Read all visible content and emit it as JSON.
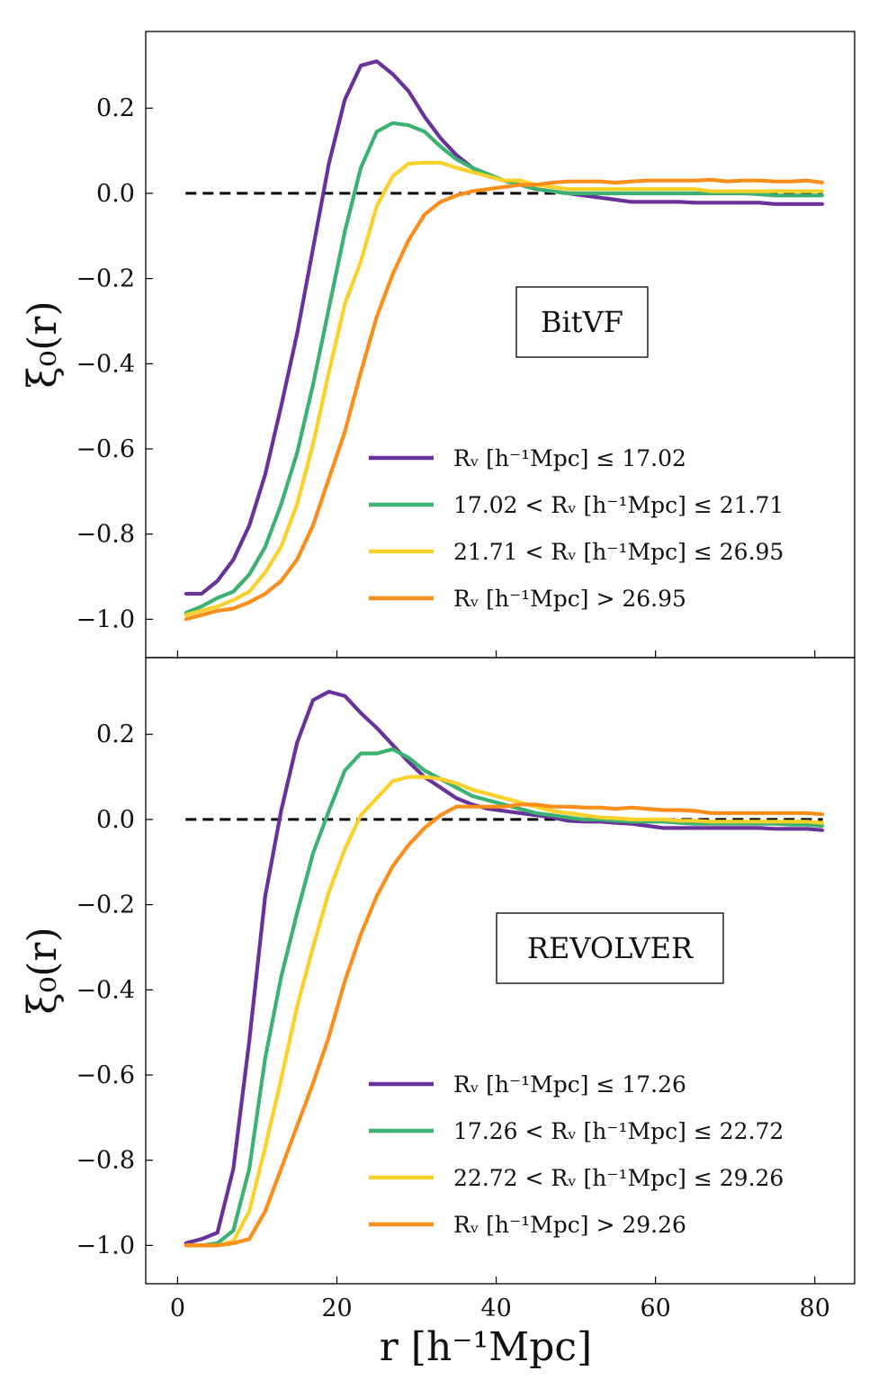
{
  "chart_data": {
    "type": "line",
    "xlabel": "r [h⁻¹Mpc]",
    "ylabel": "ξ₀(r)",
    "xlim": [
      -4,
      85
    ],
    "x_ticks": [
      0,
      20,
      40,
      60,
      80
    ],
    "x_tick_labels": [
      "0",
      "20",
      "40",
      "60",
      "80"
    ],
    "x": [
      1,
      3,
      5,
      7,
      9,
      11,
      13,
      15,
      17,
      19,
      21,
      23,
      25,
      27,
      29,
      31,
      33,
      35,
      37,
      39,
      41,
      43,
      45,
      47,
      49,
      51,
      53,
      55,
      57,
      59,
      61,
      63,
      65,
      67,
      69,
      71,
      73,
      75,
      77,
      79,
      81
    ],
    "panels": [
      {
        "name": "top",
        "box_label": "BitVF",
        "ylim": [
          -1.09,
          0.38
        ],
        "y_ticks": [
          0.2,
          0.0,
          -0.2,
          -0.4,
          -0.6,
          -0.8,
          -1.0
        ],
        "y_tick_labels": [
          "0.2",
          "0.0",
          "−0.2",
          "−0.4",
          "−0.6",
          "−0.8",
          "−1.0"
        ],
        "reference_line": 0.0,
        "series": [
          {
            "name": "R_v [h⁻¹Mpc] ≤ 17.02",
            "legend_label": "Rᵥ [h⁻¹Mpc] ≤ 17.02",
            "color": "#68329a",
            "values": [
              -0.94,
              -0.94,
              -0.91,
              -0.86,
              -0.78,
              -0.66,
              -0.5,
              -0.33,
              -0.13,
              0.07,
              0.22,
              0.3,
              0.31,
              0.28,
              0.24,
              0.18,
              0.13,
              0.09,
              0.06,
              0.04,
              0.03,
              0.02,
              0.01,
              0.005,
              0.0,
              -0.005,
              -0.01,
              -0.015,
              -0.02,
              -0.02,
              -0.02,
              -0.02,
              -0.022,
              -0.022,
              -0.022,
              -0.022,
              -0.022,
              -0.025,
              -0.025,
              -0.025,
              -0.025
            ]
          },
          {
            "name": "17.02 < R_v [h⁻¹Mpc] ≤ 21.71",
            "legend_label": "17.02 < Rᵥ [h⁻¹Mpc] ≤ 21.71",
            "color": "#3cb171",
            "values": [
              -0.985,
              -0.97,
              -0.95,
              -0.935,
              -0.895,
              -0.83,
              -0.73,
              -0.61,
              -0.45,
              -0.27,
              -0.09,
              0.06,
              0.145,
              0.165,
              0.16,
              0.145,
              0.11,
              0.08,
              0.06,
              0.045,
              0.03,
              0.02,
              0.01,
              0.005,
              0.0,
              0.0,
              0.0,
              0.0,
              0.0,
              0.0,
              0.0,
              0.0,
              0.0,
              0.0,
              0.0,
              0.0,
              -0.002,
              -0.005,
              -0.005,
              -0.005,
              -0.005
            ]
          },
          {
            "name": "21.71 < R_v [h⁻¹Mpc] ≤ 26.95",
            "legend_label": "21.71 < Rᵥ [h⁻¹Mpc] ≤ 26.95",
            "color": "#fad12a",
            "values": [
              -0.99,
              -0.98,
              -0.97,
              -0.955,
              -0.935,
              -0.89,
              -0.83,
              -0.73,
              -0.59,
              -0.42,
              -0.26,
              -0.16,
              -0.03,
              0.04,
              0.07,
              0.072,
              0.072,
              0.06,
              0.05,
              0.04,
              0.03,
              0.03,
              0.02,
              0.015,
              0.01,
              0.01,
              0.01,
              0.01,
              0.01,
              0.01,
              0.01,
              0.01,
              0.01,
              0.005,
              0.005,
              0.005,
              0.005,
              0.005,
              0.005,
              0.005,
              0.005
            ]
          },
          {
            "name": "R_v [h⁻¹Mpc] > 26.95",
            "legend_label": "Rᵥ [h⁻¹Mpc] > 26.95",
            "color": "#fb8e1a",
            "values": [
              -1.0,
              -0.99,
              -0.98,
              -0.975,
              -0.96,
              -0.94,
              -0.91,
              -0.86,
              -0.78,
              -0.67,
              -0.56,
              -0.42,
              -0.29,
              -0.19,
              -0.11,
              -0.05,
              -0.02,
              -0.005,
              0.005,
              0.01,
              0.015,
              0.02,
              0.02,
              0.025,
              0.028,
              0.028,
              0.028,
              0.025,
              0.028,
              0.03,
              0.03,
              0.03,
              0.03,
              0.032,
              0.028,
              0.03,
              0.03,
              0.028,
              0.028,
              0.03,
              0.025
            ]
          }
        ]
      },
      {
        "name": "bottom",
        "box_label": "REVOLVER",
        "ylim": [
          -1.09,
          0.38
        ],
        "y_ticks": [
          0.2,
          0.0,
          -0.2,
          -0.4,
          -0.6,
          -0.8,
          -1.0
        ],
        "y_tick_labels": [
          "0.2",
          "0.0",
          "−0.2",
          "−0.4",
          "−0.6",
          "−0.8",
          "−1.0"
        ],
        "reference_line": 0.0,
        "series": [
          {
            "name": "R_v [h⁻¹Mpc] ≤ 17.26",
            "legend_label": "Rᵥ [h⁻¹Mpc] ≤ 17.26",
            "color": "#68329a",
            "values": [
              -0.995,
              -0.985,
              -0.97,
              -0.82,
              -0.52,
              -0.18,
              0.02,
              0.18,
              0.28,
              0.3,
              0.29,
              0.25,
              0.215,
              0.175,
              0.135,
              0.1,
              0.075,
              0.05,
              0.035,
              0.025,
              0.02,
              0.015,
              0.01,
              0.005,
              -0.003,
              -0.005,
              -0.005,
              -0.008,
              -0.01,
              -0.015,
              -0.02,
              -0.02,
              -0.02,
              -0.02,
              -0.02,
              -0.02,
              -0.02,
              -0.022,
              -0.022,
              -0.022,
              -0.025
            ]
          },
          {
            "name": "17.26 < R_v [h⁻¹Mpc] ≤ 22.72",
            "legend_label": "17.26 < Rᵥ [h⁻¹Mpc] ≤ 22.72",
            "color": "#3cb171",
            "values": [
              -1.0,
              -1.0,
              -0.995,
              -0.965,
              -0.82,
              -0.56,
              -0.37,
              -0.22,
              -0.08,
              0.02,
              0.115,
              0.155,
              0.155,
              0.165,
              0.145,
              0.115,
              0.095,
              0.075,
              0.055,
              0.045,
              0.035,
              0.025,
              0.015,
              0.01,
              0.005,
              0.0,
              0.0,
              -0.003,
              -0.005,
              -0.005,
              -0.005,
              -0.008,
              -0.01,
              -0.01,
              -0.01,
              -0.01,
              -0.01,
              -0.01,
              -0.012,
              -0.012,
              -0.015
            ]
          },
          {
            "name": "22.72 < R_v [h⁻¹Mpc] ≤ 29.26",
            "legend_label": "22.72 < Rᵥ [h⁻¹Mpc] ≤ 29.26",
            "color": "#fad12a",
            "values": [
              -1.0,
              -1.0,
              -1.0,
              -0.99,
              -0.92,
              -0.77,
              -0.61,
              -0.44,
              -0.3,
              -0.17,
              -0.07,
              0.01,
              0.05,
              0.09,
              0.1,
              0.1,
              0.095,
              0.085,
              0.07,
              0.06,
              0.05,
              0.04,
              0.03,
              0.02,
              0.015,
              0.01,
              0.005,
              0.003,
              0.0,
              0.0,
              0.0,
              -0.003,
              -0.003,
              -0.005,
              -0.005,
              -0.005,
              -0.005,
              -0.005,
              -0.005,
              -0.005,
              -0.008
            ]
          },
          {
            "name": "R_v [h⁻¹Mpc] > 29.26",
            "legend_label": "Rᵥ [h⁻¹Mpc] > 29.26",
            "color": "#fb8e1a",
            "values": [
              -1.0,
              -1.0,
              -1.0,
              -0.995,
              -0.985,
              -0.92,
              -0.82,
              -0.72,
              -0.62,
              -0.51,
              -0.38,
              -0.27,
              -0.18,
              -0.11,
              -0.06,
              -0.02,
              0.01,
              0.03,
              0.03,
              0.03,
              0.03,
              0.035,
              0.035,
              0.03,
              0.03,
              0.028,
              0.028,
              0.025,
              0.028,
              0.025,
              0.022,
              0.022,
              0.02,
              0.015,
              0.015,
              0.015,
              0.015,
              0.015,
              0.015,
              0.015,
              0.012
            ]
          }
        ]
      }
    ]
  }
}
